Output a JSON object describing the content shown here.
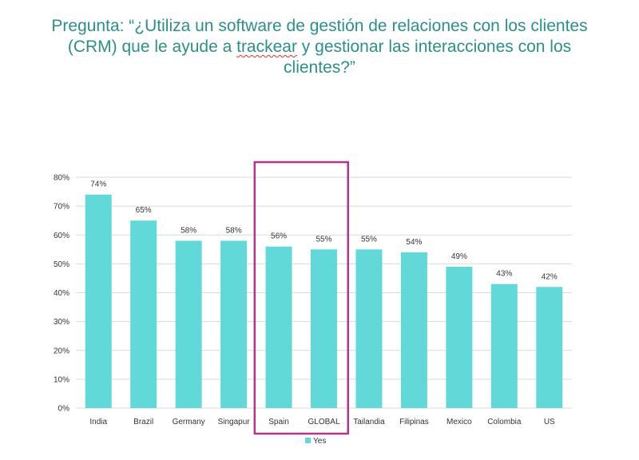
{
  "question": {
    "line1": "Pregunta: “¿Utiliza un software de gestión de relaciones con los clientes",
    "line2_before": "(CRM) que le ayude a ",
    "line2_squiggle": "trackear",
    "line2_after": " y gestionar las interacciones con los",
    "line3": "clientes?”"
  },
  "colors": {
    "bar": "#62d9d9",
    "highlight_box": "#b5338a",
    "title_text": "#2b8f8a",
    "grid": "#d9d9d9"
  },
  "chart_data": {
    "type": "bar",
    "categories": [
      "India",
      "Brazil",
      "Germany",
      "Singapur",
      "Spain",
      "GLOBAL",
      "Tailandia",
      "Filipinas",
      "Mexico",
      "Colombia",
      "US"
    ],
    "series": [
      {
        "name": "Yes",
        "values": [
          74,
          65,
          58,
          58,
          56,
          55,
          55,
          54,
          49,
          43,
          42
        ]
      }
    ],
    "data_labels": [
      "74%",
      "65%",
      "58%",
      "58%",
      "56%",
      "55%",
      "55%",
      "54%",
      "49%",
      "43%",
      "42%"
    ],
    "y_ticks": [
      "0%",
      "10%",
      "20%",
      "30%",
      "40%",
      "50%",
      "60%",
      "70%",
      "80%"
    ],
    "ylim": [
      0,
      80
    ],
    "grid": true,
    "legend": "bottom-center",
    "highlighted_categories": [
      "Spain",
      "GLOBAL"
    ]
  }
}
